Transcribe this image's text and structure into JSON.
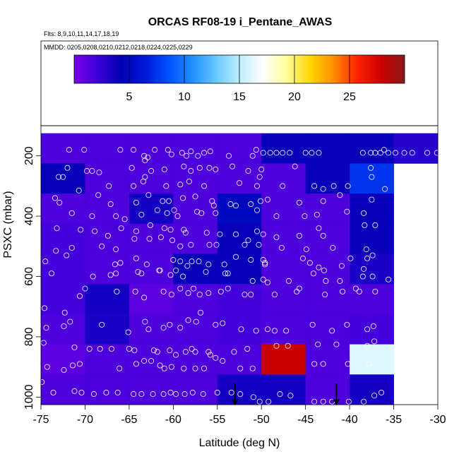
{
  "chart_data": {
    "type": "heatmap",
    "title": "ORCAS RF08-19 i_Pentane_AWAS",
    "subtitle_lines": [
      "Flts: 8,9,10,11,14,17,18,19",
      "MMDD: 0205,0208,0210,0212,0218,0224,0225,0229"
    ],
    "xlabel": "Latitude (deg N)",
    "ylabel": "PSXC (mbar)",
    "xlim": [
      -75,
      -30
    ],
    "ylim": [
      1025,
      100
    ],
    "y_inverted": true,
    "x_ticks": [
      -75,
      -70,
      -65,
      -60,
      -55,
      -50,
      -45,
      -40,
      -35,
      -30
    ],
    "y_ticks": [
      200,
      400,
      600,
      800,
      1000
    ],
    "cell_x_edges": [
      -75,
      -70,
      -65,
      -60,
      -55,
      -50,
      -45,
      -40,
      -35,
      -30
    ],
    "cell_y_edges": [
      125,
      225,
      325,
      425,
      525,
      625,
      725,
      825,
      925,
      1025
    ],
    "cell_values": [
      [
        1.5,
        1.5,
        1.5,
        1.5,
        1.5,
        4.0,
        4.0,
        4.0,
        2.8
      ],
      [
        4.0,
        1.5,
        1.5,
        1.5,
        1.5,
        1.5,
        4.0,
        7.5,
        null
      ],
      [
        1.5,
        1.5,
        3.5,
        1.5,
        5.0,
        1.5,
        1.5,
        4.0,
        null
      ],
      [
        1.8,
        1.5,
        1.5,
        1.5,
        4.0,
        1.5,
        1.5,
        4.0,
        null
      ],
      [
        1.8,
        1.5,
        1.5,
        4.0,
        4.0,
        1.5,
        1.5,
        3.3,
        null
      ],
      [
        1.8,
        3.5,
        1.0,
        1.5,
        1.8,
        1.5,
        1.5,
        1.5,
        null
      ],
      [
        1.5,
        3.3,
        1.5,
        1.5,
        1.8,
        1.5,
        1.5,
        1.8,
        null
      ],
      [
        1.0,
        1.5,
        1.5,
        1.5,
        1.5,
        28.0,
        1.5,
        16.0,
        null
      ],
      [
        1.5,
        1.5,
        1.5,
        1.5,
        3.5,
        3.5,
        1.5,
        3.5,
        null
      ]
    ],
    "colorbar": {
      "min": 0,
      "max": 30,
      "ticks": [
        5,
        10,
        15,
        20,
        25
      ],
      "colors": [
        "#7a00e6",
        "#3a00d8",
        "#0000b4",
        "#0018d8",
        "#0050ff",
        "#1e90ff",
        "#66c8ff",
        "#bfeeff",
        "#ffffff",
        "#ffff99",
        "#ffd700",
        "#ff8c00",
        "#ff2000",
        "#cc0000",
        "#8b1a1a"
      ]
    },
    "annotations": [
      {
        "type": "down-arrow",
        "x": -53,
        "y_from": 955,
        "y_to": 1025
      },
      {
        "type": "down-arrow",
        "x": -41.5,
        "y_from": 955,
        "y_to": 1025
      }
    ],
    "points": [
      [
        -71.8,
        180
      ],
      [
        -70.1,
        180
      ],
      [
        -66,
        180
      ],
      [
        -64.5,
        180
      ],
      [
        -63.3,
        200
      ],
      [
        -62.9,
        205
      ],
      [
        -63.2,
        215
      ],
      [
        -62.1,
        180
      ],
      [
        -60.6,
        180
      ],
      [
        -60.2,
        195
      ],
      [
        -59,
        190
      ],
      [
        -58.5,
        200
      ],
      [
        -58,
        185
      ],
      [
        -57.2,
        200
      ],
      [
        -56.5,
        190
      ],
      [
        -55.8,
        185
      ],
      [
        -53.7,
        200
      ],
      [
        -51,
        200
      ],
      [
        -50.6,
        180
      ],
      [
        -49.8,
        190
      ],
      [
        -49,
        190
      ],
      [
        -48.3,
        190
      ],
      [
        -47.6,
        190
      ],
      [
        -46.8,
        190
      ],
      [
        -45,
        190
      ],
      [
        -44.3,
        190
      ],
      [
        -43.5,
        190
      ],
      [
        -38.5,
        190
      ],
      [
        -37.6,
        190
      ],
      [
        -36.5,
        190
      ],
      [
        -35.6,
        190
      ],
      [
        -34.8,
        190
      ],
      [
        -33.8,
        190
      ],
      [
        -32.9,
        190
      ],
      [
        -31.2,
        190
      ],
      [
        -30.1,
        190
      ],
      [
        -36.1,
        180
      ],
      [
        -37.1,
        190
      ],
      [
        -72,
        240
      ],
      [
        -69.8,
        250
      ],
      [
        -69.2,
        250
      ],
      [
        -68.4,
        255
      ],
      [
        -64.7,
        240
      ],
      [
        -62.5,
        250
      ],
      [
        -61,
        245
      ],
      [
        -58.8,
        235
      ],
      [
        -58,
        250
      ],
      [
        -57,
        240
      ],
      [
        -55.9,
        240
      ],
      [
        -55.2,
        245
      ],
      [
        -53.3,
        235
      ],
      [
        -51.5,
        250
      ],
      [
        -50,
        245
      ],
      [
        -46.2,
        235
      ],
      [
        -37.6,
        240
      ],
      [
        -73,
        270
      ],
      [
        -72.5,
        270
      ],
      [
        -70.7,
        315
      ],
      [
        -67.3,
        300
      ],
      [
        -64.5,
        300
      ],
      [
        -63.2,
        270
      ],
      [
        -63.4,
        285
      ],
      [
        -60.8,
        300
      ],
      [
        -59.2,
        295
      ],
      [
        -58.2,
        285
      ],
      [
        -56.5,
        300
      ],
      [
        -52.5,
        290
      ],
      [
        -50.5,
        300
      ],
      [
        -50.2,
        270
      ],
      [
        -47.6,
        300
      ],
      [
        -44,
        300
      ],
      [
        -43,
        310
      ],
      [
        -41.8,
        300
      ],
      [
        -40.2,
        300
      ],
      [
        -36,
        310
      ],
      [
        -37.5,
        270
      ],
      [
        -73.4,
        340
      ],
      [
        -72.9,
        355
      ],
      [
        -68.5,
        330
      ],
      [
        -67.1,
        360
      ],
      [
        -64.2,
        355
      ],
      [
        -62.8,
        330
      ],
      [
        -61.2,
        350
      ],
      [
        -60.5,
        350
      ],
      [
        -58.9,
        340
      ],
      [
        -57.5,
        335
      ],
      [
        -55.6,
        350
      ],
      [
        -55.4,
        365
      ],
      [
        -53.5,
        360
      ],
      [
        -52.9,
        365
      ],
      [
        -51.2,
        360
      ],
      [
        -50.1,
        350
      ],
      [
        -49.3,
        345
      ],
      [
        -45.7,
        355
      ],
      [
        -43,
        350
      ],
      [
        -37.5,
        345
      ],
      [
        -41.1,
        330
      ],
      [
        -71.5,
        390
      ],
      [
        -69.2,
        400
      ],
      [
        -66.5,
        400
      ],
      [
        -65.5,
        410
      ],
      [
        -63.6,
        395
      ],
      [
        -61.8,
        380
      ],
      [
        -60.7,
        390
      ],
      [
        -59.9,
        380
      ],
      [
        -59.5,
        400
      ],
      [
        -57.3,
        385
      ],
      [
        -56.8,
        390
      ],
      [
        -55.2,
        390
      ],
      [
        -50.5,
        380
      ],
      [
        -48.3,
        400
      ],
      [
        -45.1,
        400
      ],
      [
        -43.7,
        395
      ],
      [
        -40.3,
        385
      ],
      [
        -38.4,
        390
      ],
      [
        -73.2,
        440
      ],
      [
        -70.5,
        445
      ],
      [
        -68.9,
        450
      ],
      [
        -67.4,
        465
      ],
      [
        -65.9,
        440
      ],
      [
        -64.2,
        450
      ],
      [
        -62.6,
        430
      ],
      [
        -61,
        440
      ],
      [
        -60.3,
        445
      ],
      [
        -58.8,
        445
      ],
      [
        -58.6,
        455
      ],
      [
        -56.2,
        455
      ],
      [
        -54.7,
        460
      ],
      [
        -52.9,
        460
      ],
      [
        -50.5,
        450
      ],
      [
        -49.8,
        460
      ],
      [
        -48.3,
        470
      ],
      [
        -45.7,
        465
      ],
      [
        -43.5,
        440
      ],
      [
        -43,
        465
      ],
      [
        -37.1,
        430
      ],
      [
        -38.3,
        430
      ],
      [
        -73.3,
        515
      ],
      [
        -71.5,
        505
      ],
      [
        -68.1,
        500
      ],
      [
        -66.5,
        510
      ],
      [
        -64.4,
        475
      ],
      [
        -62.7,
        475
      ],
      [
        -61.4,
        470
      ],
      [
        -60.1,
        480
      ],
      [
        -59.2,
        500
      ],
      [
        -58,
        495
      ],
      [
        -55.9,
        495
      ],
      [
        -55.1,
        495
      ],
      [
        -51.9,
        495
      ],
      [
        -51.5,
        480
      ],
      [
        -50.3,
        495
      ],
      [
        -47.7,
        505
      ],
      [
        -44.9,
        510
      ],
      [
        -41.9,
        505
      ],
      [
        -38.1,
        510
      ],
      [
        -74.5,
        550
      ],
      [
        -72.1,
        530
      ],
      [
        -66.6,
        560
      ],
      [
        -66,
        555
      ],
      [
        -64.2,
        540
      ],
      [
        -63,
        560
      ],
      [
        -61.5,
        580
      ],
      [
        -60,
        545
      ],
      [
        -59.2,
        550
      ],
      [
        -58.4,
        565
      ],
      [
        -57.9,
        550
      ],
      [
        -57.1,
        550
      ],
      [
        -56,
        560
      ],
      [
        -54.2,
        560
      ],
      [
        -52.9,
        535
      ],
      [
        -51.2,
        545
      ],
      [
        -49.8,
        545
      ],
      [
        -49.6,
        555
      ],
      [
        -49.6,
        560
      ],
      [
        -45.3,
        540
      ],
      [
        -44.5,
        555
      ],
      [
        -43.5,
        570
      ],
      [
        -42.9,
        580
      ],
      [
        -40.9,
        565
      ],
      [
        -39.9,
        540
      ],
      [
        -38.4,
        575
      ],
      [
        -38,
        540
      ],
      [
        -37.4,
        530
      ],
      [
        -73.8,
        590
      ],
      [
        -69.1,
        600
      ],
      [
        -67.1,
        595
      ],
      [
        -66.5,
        590
      ],
      [
        -64,
        585
      ],
      [
        -63.6,
        590
      ],
      [
        -61.6,
        580
      ],
      [
        -60.3,
        595
      ],
      [
        -59.7,
        580
      ],
      [
        -58.9,
        600
      ],
      [
        -56.3,
        585
      ],
      [
        -54.1,
        590
      ],
      [
        -53.8,
        590
      ],
      [
        -51,
        615
      ],
      [
        -49.8,
        610
      ],
      [
        -49.3,
        620
      ],
      [
        -46.9,
        615
      ],
      [
        -44.1,
        590
      ],
      [
        -42.7,
        615
      ],
      [
        -41.1,
        615
      ],
      [
        -38.5,
        600
      ],
      [
        -37.4,
        600
      ],
      [
        -35.6,
        610
      ],
      [
        -74.6,
        705
      ],
      [
        -72.3,
        720
      ],
      [
        -70.6,
        665
      ],
      [
        -70,
        640
      ],
      [
        -66.4,
        650
      ],
      [
        -64.3,
        650
      ],
      [
        -63.3,
        670
      ],
      [
        -61.1,
        650
      ],
      [
        -60.2,
        660
      ],
      [
        -59.2,
        640
      ],
      [
        -58.3,
        655
      ],
      [
        -57.7,
        640
      ],
      [
        -57,
        660
      ],
      [
        -56,
        655
      ],
      [
        -54.6,
        650
      ],
      [
        -53.8,
        640
      ],
      [
        -51.9,
        660
      ],
      [
        -51.2,
        660
      ],
      [
        -48.5,
        660
      ],
      [
        -46,
        650
      ],
      [
        -45.7,
        640
      ],
      [
        -42.8,
        660
      ],
      [
        -40.8,
        650
      ],
      [
        -39.3,
        640
      ],
      [
        -38.9,
        650
      ],
      [
        -37.1,
        650
      ],
      [
        -74.4,
        770
      ],
      [
        -72.4,
        765
      ],
      [
        -71.7,
        750
      ],
      [
        -68.1,
        760
      ],
      [
        -65.1,
        785
      ],
      [
        -63.2,
        750
      ],
      [
        -62.8,
        775
      ],
      [
        -61.1,
        770
      ],
      [
        -60.4,
        760
      ],
      [
        -59.2,
        770
      ],
      [
        -58.3,
        745
      ],
      [
        -57.4,
        750
      ],
      [
        -56.9,
        720
      ],
      [
        -55.2,
        760
      ],
      [
        -54.4,
        755
      ],
      [
        -52.3,
        775
      ],
      [
        -50.6,
        780
      ],
      [
        -49.3,
        775
      ],
      [
        -48.5,
        780
      ],
      [
        -47.2,
        780
      ],
      [
        -44.2,
        760
      ],
      [
        -42,
        780
      ],
      [
        -40.3,
        760
      ],
      [
        -38,
        775
      ],
      [
        -37.3,
        765
      ],
      [
        -74.7,
        820
      ],
      [
        -71.2,
        835
      ],
      [
        -69.5,
        840
      ],
      [
        -68.3,
        840
      ],
      [
        -67,
        840
      ],
      [
        -65,
        840
      ],
      [
        -64.4,
        845
      ],
      [
        -62.2,
        845
      ],
      [
        -61.8,
        850
      ],
      [
        -60.4,
        845
      ],
      [
        -59.7,
        860
      ],
      [
        -58.6,
        850
      ],
      [
        -57.9,
        840
      ],
      [
        -57.5,
        850
      ],
      [
        -56,
        850
      ],
      [
        -55.8,
        860
      ],
      [
        -55.2,
        870
      ],
      [
        -53.1,
        850
      ],
      [
        -51.6,
        840
      ],
      [
        -48.3,
        830
      ],
      [
        -47,
        830
      ],
      [
        -43.6,
        825
      ],
      [
        -41.5,
        825
      ],
      [
        -38,
        830
      ],
      [
        -37.2,
        815
      ],
      [
        -74.3,
        900
      ],
      [
        -72.4,
        910
      ],
      [
        -71.4,
        895
      ],
      [
        -70.6,
        890
      ],
      [
        -66.1,
        905
      ],
      [
        -64.2,
        890
      ],
      [
        -63.3,
        880
      ],
      [
        -62.5,
        880
      ],
      [
        -61.5,
        895
      ],
      [
        -61,
        905
      ],
      [
        -60.2,
        900
      ],
      [
        -58.8,
        905
      ],
      [
        -57.5,
        905
      ],
      [
        -56.5,
        905
      ],
      [
        -54.4,
        880
      ],
      [
        -52.4,
        905
      ],
      [
        -51,
        905
      ],
      [
        -44,
        890
      ],
      [
        -43,
        890
      ],
      [
        -40.2,
        890
      ],
      [
        -37.8,
        890
      ],
      [
        -74.9,
        950
      ],
      [
        -73.6,
        985
      ],
      [
        -71.2,
        980
      ],
      [
        -70.4,
        985
      ],
      [
        -69,
        990
      ],
      [
        -67.6,
        985
      ],
      [
        -66.3,
        985
      ],
      [
        -64.5,
        990
      ],
      [
        -63.6,
        990
      ],
      [
        -62.3,
        990
      ],
      [
        -61.1,
        990
      ],
      [
        -60.3,
        985
      ],
      [
        -59.7,
        990
      ],
      [
        -58.7,
        990
      ],
      [
        -57.8,
        985
      ],
      [
        -56.6,
        990
      ],
      [
        -55,
        985
      ],
      [
        -53.4,
        985
      ],
      [
        -52.4,
        990
      ],
      [
        -50.9,
        1000
      ],
      [
        -50.2,
        1015
      ],
      [
        -49.2,
        1015
      ],
      [
        -47.9,
        990
      ],
      [
        -46.7,
        995
      ],
      [
        -44,
        1015
      ],
      [
        -43,
        1015
      ],
      [
        -42,
        1015
      ],
      [
        -40.1,
        1015
      ],
      [
        -38.4,
        1015
      ],
      [
        -37.2,
        995
      ],
      [
        -36.4,
        985
      ]
    ]
  }
}
